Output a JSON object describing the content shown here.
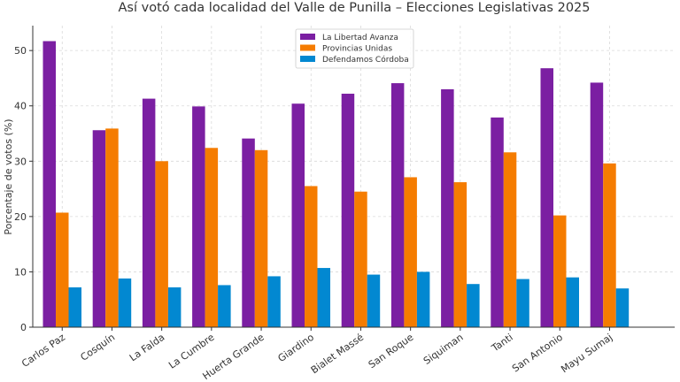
{
  "chart_data": {
    "type": "bar",
    "title": "Así votó cada localidad del Valle de Punilla – Elecciones Legislativas 2025",
    "xlabel": "",
    "ylabel": "Porcentaje de votos (%)",
    "ylim": [
      0,
      54.5
    ],
    "yticks": [
      0,
      10,
      20,
      30,
      40,
      50
    ],
    "grid": true,
    "legend_position": "top-center",
    "categories": [
      "Carlos Paz",
      "Cosquín",
      "La Falda",
      "La Cumbre",
      "Huerta Grande",
      "Giardino",
      "Bialet Massé",
      "San Roque",
      "Siquiman",
      "Tanti",
      "San Antonio",
      "Mayu Sumaj"
    ],
    "series": [
      {
        "name": "La Libertad Avanza",
        "color": "#7b1fa2",
        "values": [
          51.7,
          35.6,
          41.3,
          39.9,
          34.1,
          40.4,
          42.2,
          44.1,
          43.0,
          37.9,
          46.8,
          44.2
        ]
      },
      {
        "name": "Provincias Unidas",
        "color": "#f57c00",
        "values": [
          20.7,
          35.9,
          30.0,
          32.4,
          32.0,
          25.5,
          24.5,
          27.1,
          26.2,
          31.6,
          20.2,
          29.6
        ]
      },
      {
        "name": "Defendamos Córdoba",
        "color": "#0288d1",
        "values": [
          7.2,
          8.8,
          7.2,
          7.6,
          9.2,
          10.7,
          9.5,
          10.0,
          7.8,
          8.7,
          9.0,
          7.0
        ]
      }
    ]
  }
}
